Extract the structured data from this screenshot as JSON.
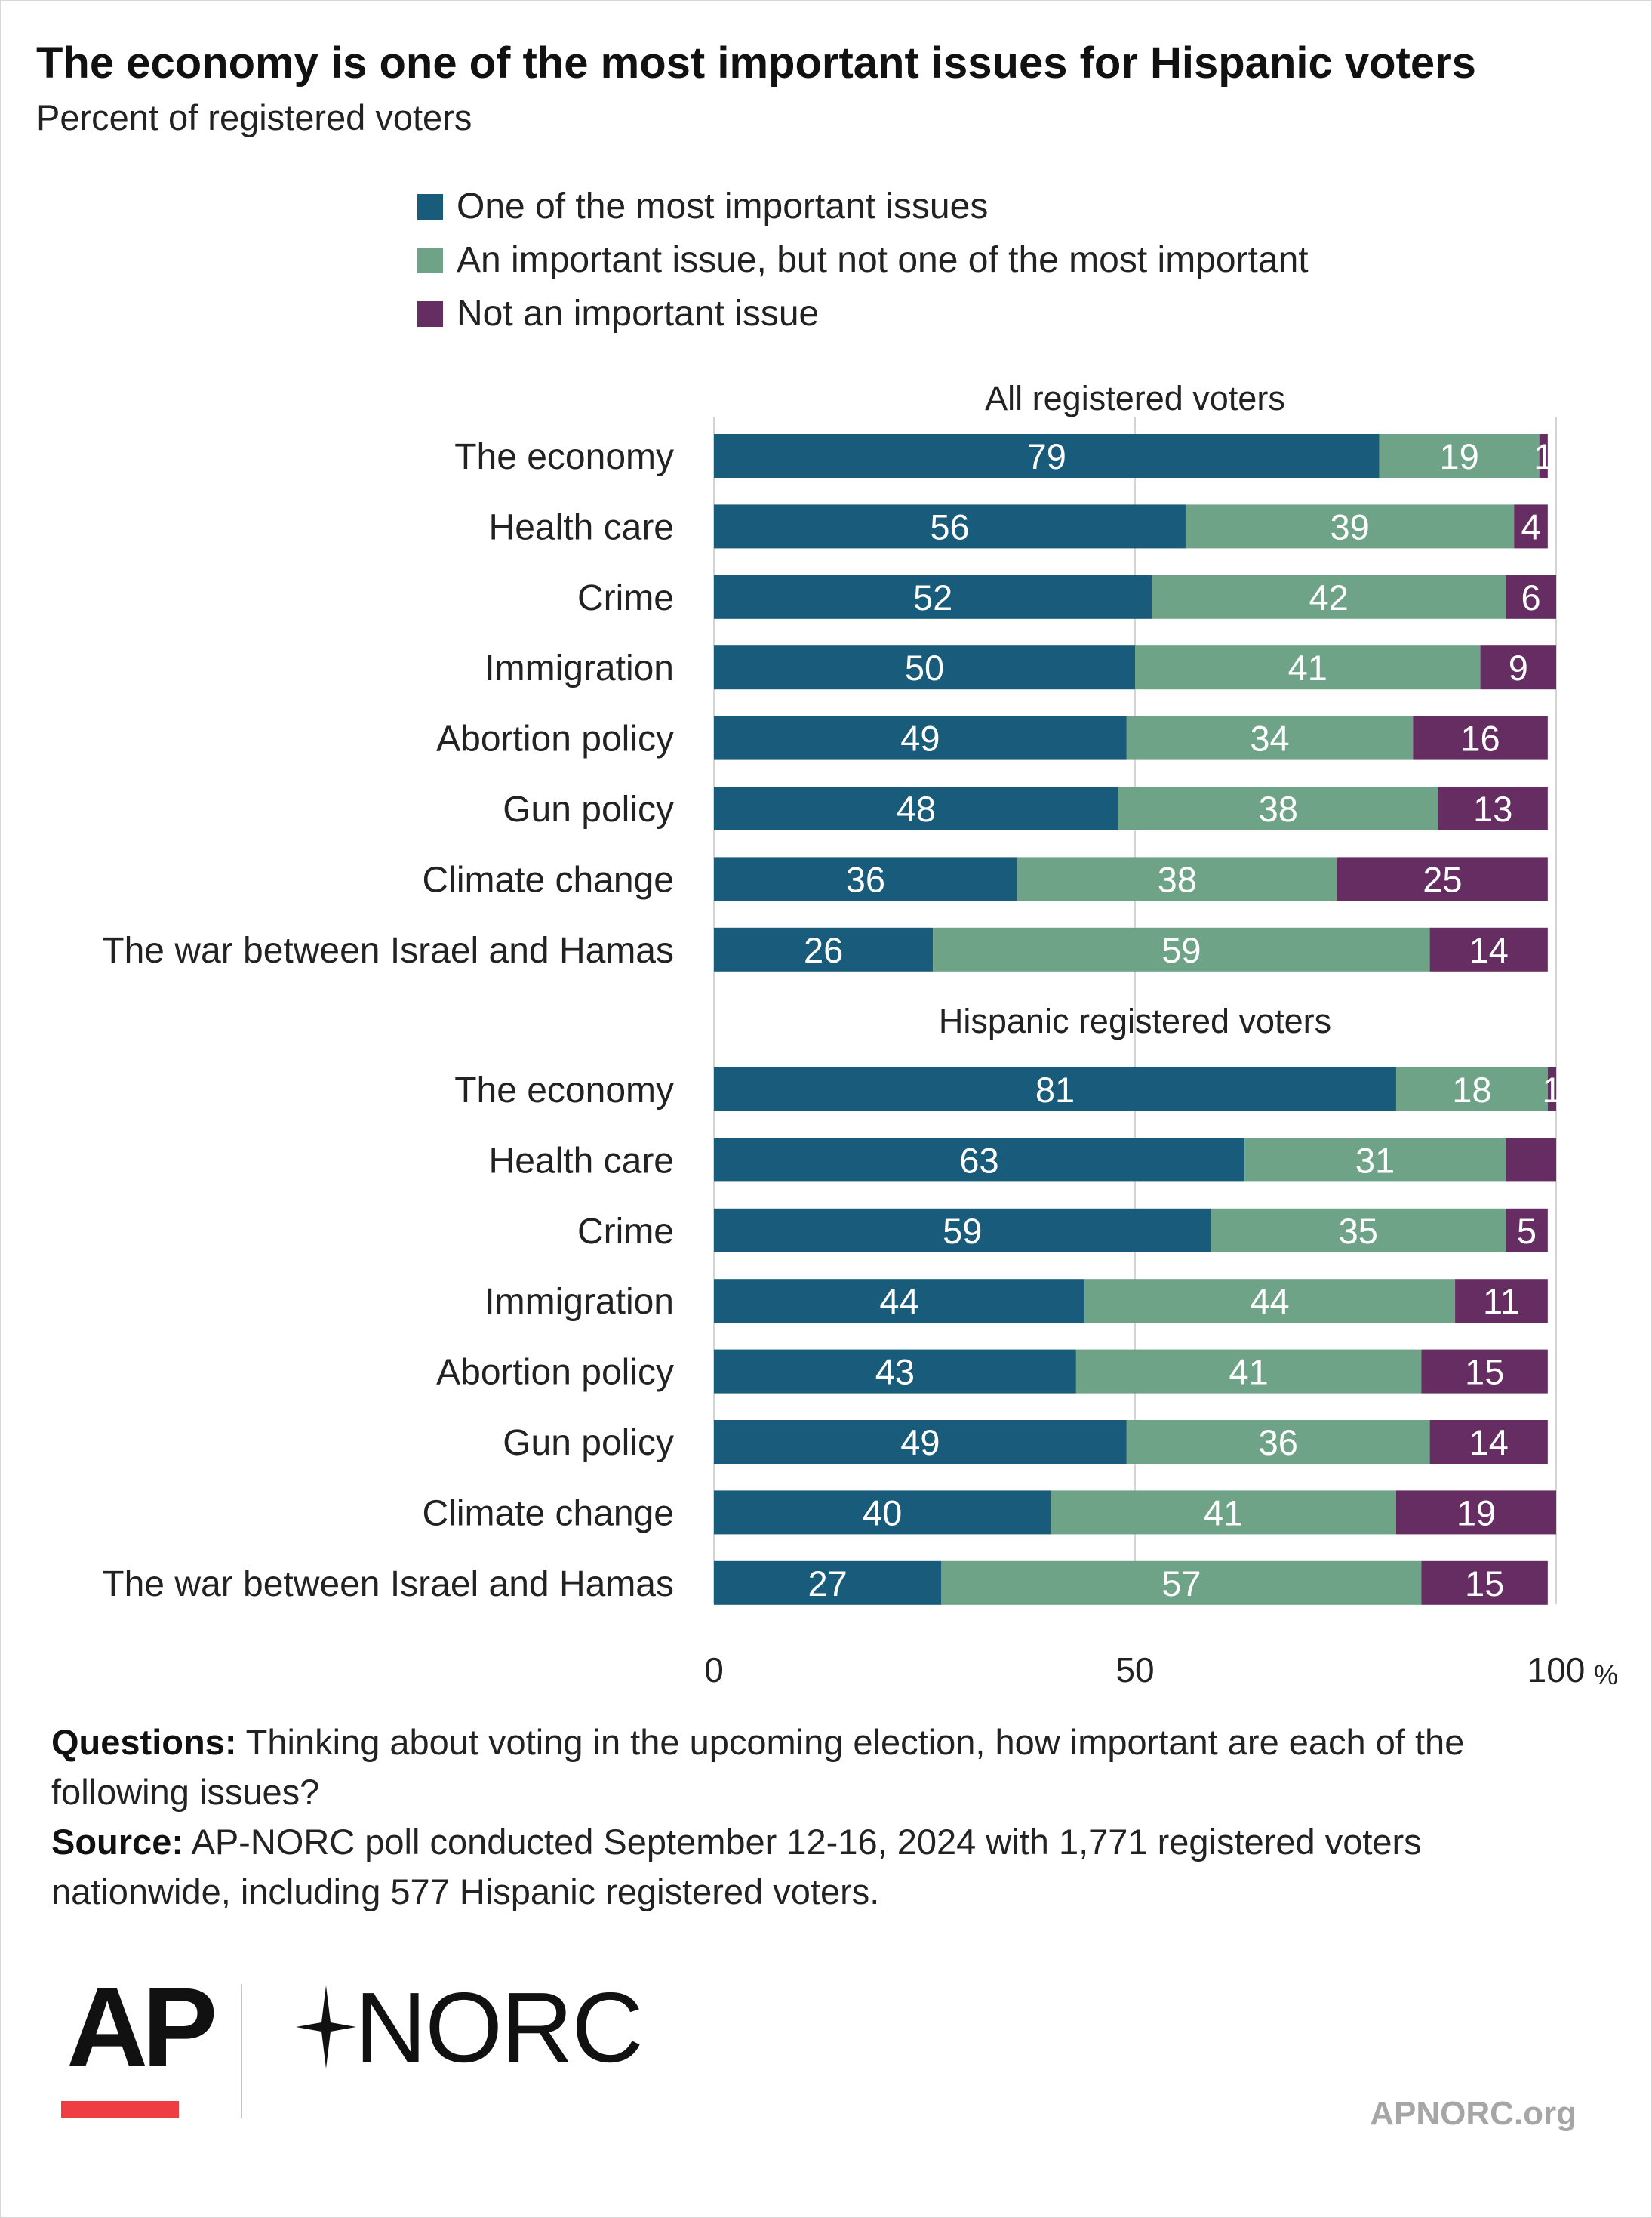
{
  "title": "The economy is one of the most important issues for Hispanic voters",
  "subtitle": "Percent of registered voters",
  "legend": [
    {
      "label": "One of the most important issues",
      "color": "#195b7a"
    },
    {
      "label": "An important issue, but not one of the most important",
      "color": "#6fa388"
    },
    {
      "label": "Not an important issue",
      "color": "#652d62"
    }
  ],
  "chart_data": {
    "type": "bar",
    "orientation": "horizontal",
    "stacked": true,
    "xlim": [
      0,
      100
    ],
    "x_ticks": [
      "0",
      "50",
      "100"
    ],
    "x_unit": "%",
    "grid": true,
    "legend_position": "top",
    "groups": [
      {
        "name": "All registered voters",
        "categories": [
          "The economy",
          "Health care",
          "Crime",
          "Immigration",
          "Abortion policy",
          "Gun policy",
          "Climate change",
          "The war between Israel and Hamas"
        ],
        "series": [
          {
            "name": "One of the most important issues",
            "values": [
              79,
              56,
              52,
              50,
              49,
              48,
              36,
              26
            ]
          },
          {
            "name": "An important issue, but not one of the most important",
            "values": [
              19,
              39,
              42,
              41,
              34,
              38,
              38,
              59
            ]
          },
          {
            "name": "Not an important issue",
            "values": [
              1,
              4,
              6,
              9,
              16,
              13,
              25,
              14
            ]
          }
        ]
      },
      {
        "name": "Hispanic registered voters",
        "categories": [
          "The economy",
          "Health care",
          "Crime",
          "Immigration",
          "Abortion policy",
          "Gun policy",
          "Climate change",
          "The war between Israel and Hamas"
        ],
        "series": [
          {
            "name": "One of the most important issues",
            "values": [
              81,
              63,
              59,
              44,
              43,
              49,
              40,
              27
            ]
          },
          {
            "name": "An important issue, but not one of the most important",
            "values": [
              18,
              31,
              35,
              44,
              41,
              36,
              41,
              57
            ]
          },
          {
            "name": "Not an important issue",
            "values": [
              1,
              6,
              5,
              11,
              15,
              14,
              19,
              15
            ],
            "hidden_labels": [
              false,
              true,
              false,
              false,
              false,
              false,
              false,
              false
            ]
          }
        ]
      }
    ]
  },
  "notes": {
    "questions_label": "Questions:",
    "questions_text": " Thinking about voting in the upcoming election, how important are each of the following issues?",
    "source_label": "Source:",
    "source_text": " AP-NORC poll conducted September 12-16, 2024 with 1,771 registered voters nationwide, including 577 Hispanic registered voters."
  },
  "logos": {
    "ap": "AP",
    "norc": "NORC",
    "star_icon": "norc-star-icon"
  },
  "site": "APNORC.org"
}
